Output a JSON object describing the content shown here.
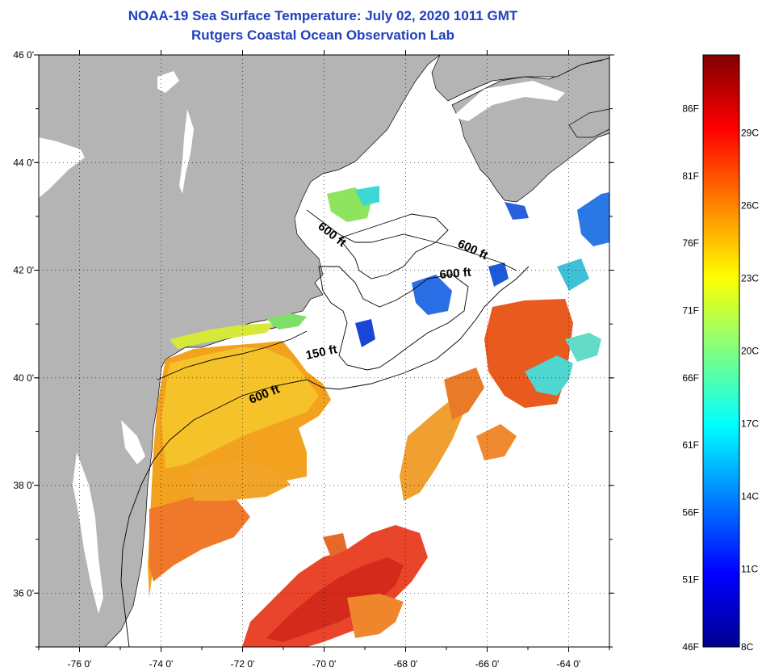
{
  "title": {
    "line1": "NOAA-19 Sea Surface Temperature:  July 02, 2020 1011 GMT",
    "line2": "Rutgers Coastal Ocean Observation Lab"
  },
  "map": {
    "lon_range": [
      -77,
      -63
    ],
    "lat_range": [
      35,
      46
    ],
    "lon_ticks": [
      {
        "value": -76,
        "label": "-76 0'"
      },
      {
        "value": -74,
        "label": "-74 0'"
      },
      {
        "value": -72,
        "label": "-72 0'"
      },
      {
        "value": -70,
        "label": "-70 0'"
      },
      {
        "value": -68,
        "label": "-68 0'"
      },
      {
        "value": -66,
        "label": "-66 0'"
      },
      {
        "value": -64,
        "label": "-64 0'"
      }
    ],
    "lat_ticks": [
      {
        "value": 46,
        "label": "46 0'"
      },
      {
        "value": 44,
        "label": "44 0'"
      },
      {
        "value": 42,
        "label": "42 0'"
      },
      {
        "value": 40,
        "label": "40 0'"
      },
      {
        "value": 38,
        "label": "38 0'"
      },
      {
        "value": 36,
        "label": "36 0'"
      }
    ],
    "grid": "dotted",
    "land_color": "#b4b4b4",
    "contour_labels": [
      "600 ft",
      "600 ft",
      "600 ft",
      "150 ft",
      "600 ft"
    ]
  },
  "colorbar": {
    "labels_f": [
      "86F",
      "81F",
      "76F",
      "71F",
      "66F",
      "61F",
      "56F",
      "51F",
      "46F"
    ],
    "labels_c": [
      "29C",
      "26C",
      "23C",
      "20C",
      "17C",
      "14C",
      "11C",
      "8C"
    ],
    "colors": [
      "#00008f",
      "#0000ff",
      "#0080ff",
      "#00ffff",
      "#80ff80",
      "#ffff00",
      "#ff8000",
      "#ff0000",
      "#800000"
    ]
  }
}
